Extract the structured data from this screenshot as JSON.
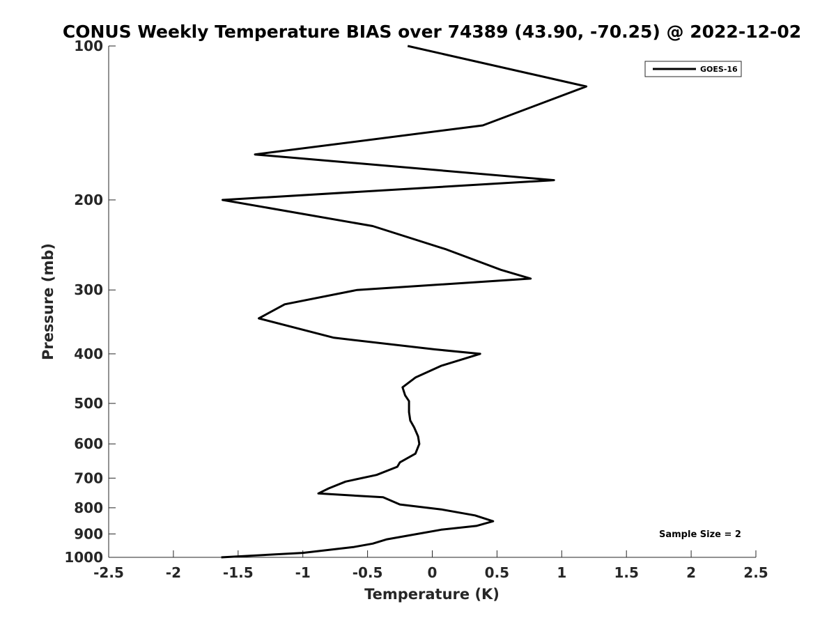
{
  "chart_data": {
    "type": "line",
    "title": "CONUS Weekly Temperature BIAS over 74389 (43.90, -70.25) @ 2022-12-02",
    "xlabel": "Temperature (K)",
    "ylabel": "Pressure (mb)",
    "xlim": [
      -2.5,
      2.5
    ],
    "ylim": [
      1000,
      100
    ],
    "y_scale": "log",
    "y_reversed": true,
    "x_ticks": [
      -2.5,
      -2,
      -1.5,
      -1,
      -0.5,
      0,
      0.5,
      1,
      1.5,
      2,
      2.5
    ],
    "x_tick_labels": [
      "-2.5",
      "-2",
      "-1.5",
      "-1",
      "-0.5",
      "0",
      "0.5",
      "1",
      "1.5",
      "2",
      "2.5"
    ],
    "y_ticks": [
      100,
      200,
      300,
      400,
      500,
      600,
      700,
      800,
      900,
      1000
    ],
    "y_tick_labels": [
      "100",
      "200",
      "300",
      "400",
      "500",
      "600",
      "700",
      "800",
      "900",
      "1000"
    ],
    "grid": false,
    "legend_position": "top-right",
    "series": [
      {
        "name": "GOES-16",
        "color": "#000000",
        "x": [
          -0.19,
          1.19,
          0.39,
          -1.37,
          0.94,
          -1.62,
          -0.46,
          0.11,
          0.53,
          0.76,
          -0.58,
          -1.14,
          -1.34,
          -0.76,
          0.02,
          0.37,
          0.07,
          -0.13,
          -0.23,
          -0.21,
          -0.18,
          -0.18,
          -0.17,
          -0.14,
          -0.11,
          -0.1,
          -0.13,
          -0.25,
          -0.27,
          -0.43,
          -0.67,
          -0.8,
          -0.88,
          -0.38,
          -0.25,
          0.07,
          0.33,
          0.47,
          0.34,
          0.07,
          -0.19,
          -0.35,
          -0.46,
          -0.61,
          -1.0,
          -1.63
        ],
        "y": [
          100,
          120,
          143,
          163,
          183,
          200,
          225,
          250,
          274,
          285,
          300,
          320,
          341,
          372,
          392,
          400,
          422,
          445,
          465,
          482,
          495,
          520,
          540,
          557,
          580,
          600,
          627,
          652,
          665,
          690,
          711,
          733,
          750,
          763,
          788,
          806,
          828,
          850,
          868,
          883,
          907,
          922,
          940,
          955,
          980,
          1000
        ]
      }
    ],
    "annotations": [
      "Sample Size = 2"
    ]
  }
}
